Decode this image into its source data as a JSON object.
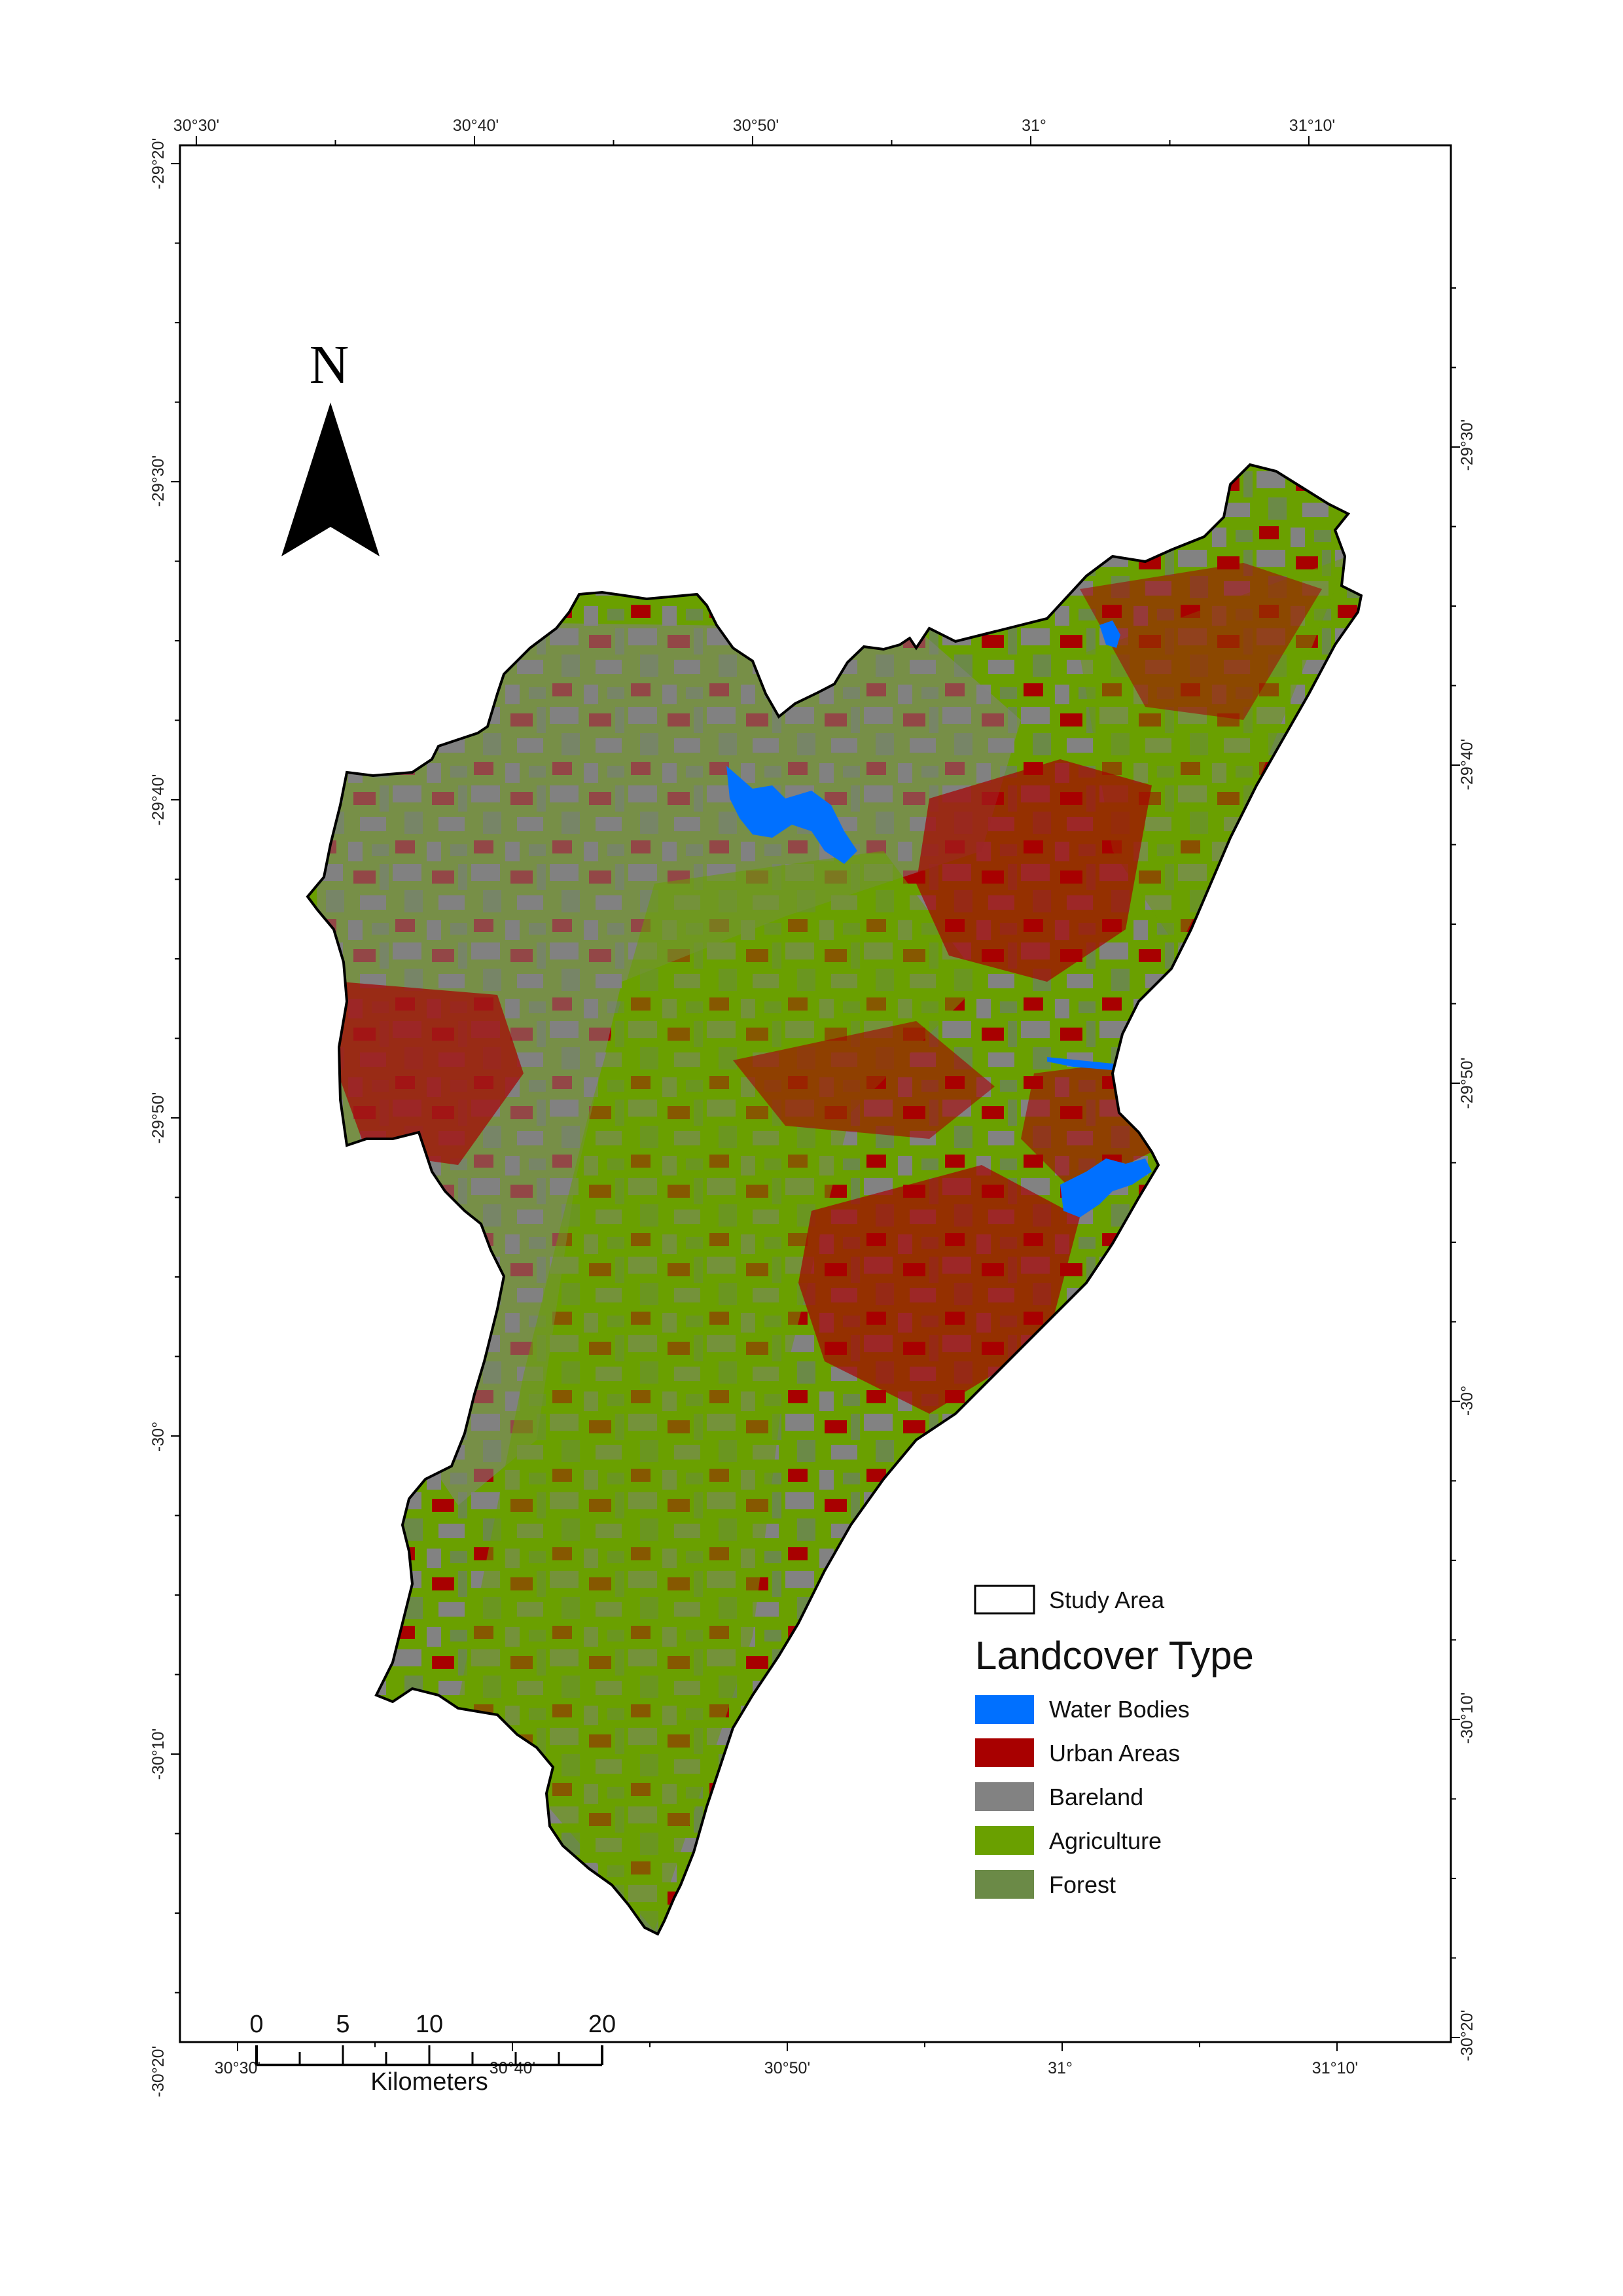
{
  "map": {
    "top_ticks": [
      "30°30'",
      "30°40'",
      "30°50'",
      "31°",
      "31°10'"
    ],
    "bottom_ticks": [
      "30°30'",
      "30°40'",
      "30°50'",
      "31°",
      "31°10'"
    ],
    "left_ticks": [
      "-29°20'",
      "-29°30'",
      "-29°40'",
      "-29°50'",
      "-30°",
      "-30°10'",
      "-30°20'"
    ],
    "right_ticks": [
      "-29°30'",
      "-29°40'",
      "-29°50'",
      "-30°",
      "-30°10'",
      "-30°20'"
    ]
  },
  "north_arrow": {
    "label": "N"
  },
  "legend": {
    "study_area_label": "Study Area",
    "title": "Landcover Type",
    "items": [
      {
        "label": "Water Bodies",
        "color": "#0070ff"
      },
      {
        "label": "Urban Areas",
        "color": "#a80000"
      },
      {
        "label": "Bareland",
        "color": "#828282"
      },
      {
        "label": "Agriculture",
        "color": "#6aa000"
      },
      {
        "label": "Forest",
        "color": "#6b8a47"
      }
    ]
  },
  "scale_bar": {
    "labels": [
      "0",
      "5",
      "10",
      "20"
    ],
    "unit": "Kilometers"
  }
}
